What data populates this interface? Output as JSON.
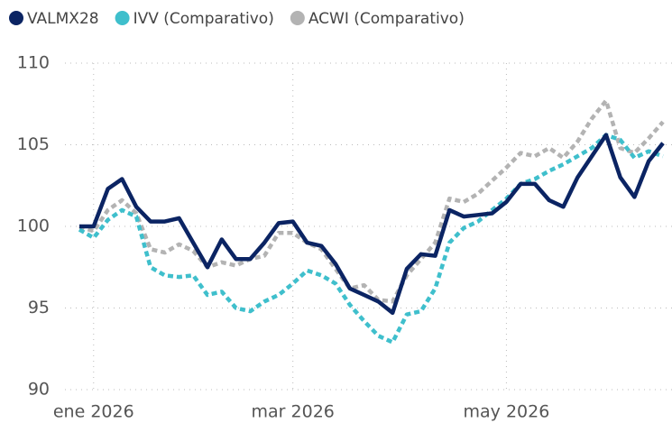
{
  "chart_data": {
    "type": "line",
    "categories": [
      null,
      "ene 2026",
      null,
      null,
      null,
      null,
      null,
      null,
      null,
      null,
      null,
      null,
      null,
      null,
      null,
      "mar 2026",
      null,
      null,
      null,
      null,
      null,
      null,
      null,
      null,
      null,
      null,
      null,
      null,
      null,
      null,
      "may 2026",
      null,
      null,
      null,
      null,
      null,
      null,
      null,
      null,
      null,
      null,
      null
    ],
    "series": [
      {
        "name": "VALMX28",
        "color": "#0b2463",
        "dashed": false,
        "values": [
          100.0,
          100.0,
          102.3,
          102.9,
          101.2,
          100.3,
          100.3,
          100.5,
          99.0,
          97.5,
          99.2,
          98.0,
          98.0,
          99.0,
          100.2,
          100.3,
          99.0,
          98.8,
          97.7,
          96.2,
          95.8,
          95.4,
          94.7,
          97.4,
          98.3,
          98.2,
          101.0,
          100.6,
          100.7,
          100.8,
          101.5,
          102.6,
          102.6,
          101.6,
          101.2,
          103.0,
          104.3,
          105.6,
          103.0,
          101.8,
          104.0,
          105.1
        ]
      },
      {
        "name": "IVV (Comparativo)",
        "color": "#3fbfcc",
        "dashed": true,
        "values": [
          99.8,
          99.3,
          100.4,
          101.0,
          100.6,
          97.5,
          97.0,
          96.9,
          97.0,
          95.8,
          96.0,
          95.0,
          94.8,
          95.4,
          95.8,
          96.5,
          97.3,
          97.0,
          96.5,
          95.2,
          94.2,
          93.3,
          92.9,
          94.6,
          94.8,
          96.2,
          99.0,
          99.9,
          100.3,
          101.0,
          101.7,
          102.6,
          102.9,
          103.4,
          103.8,
          104.3,
          104.8,
          105.6,
          105.3,
          104.2,
          104.6,
          104.3
        ]
      },
      {
        "name": "ACWI (Comparativo)",
        "color": "#b3b3b3",
        "dashed": true,
        "values": [
          100.0,
          99.7,
          101.0,
          101.6,
          100.8,
          98.6,
          98.4,
          98.9,
          98.5,
          97.5,
          97.8,
          97.6,
          98.0,
          98.2,
          99.6,
          99.6,
          99.0,
          98.6,
          97.4,
          96.2,
          96.4,
          95.5,
          95.4,
          97.0,
          98.0,
          99.0,
          101.7,
          101.5,
          102.0,
          102.8,
          103.6,
          104.5,
          104.3,
          104.8,
          104.2,
          105.2,
          106.6,
          107.7,
          104.8,
          104.5,
          105.4,
          106.4
        ]
      }
    ],
    "ylim": [
      90,
      110
    ],
    "yticks": [
      90,
      95,
      100,
      105,
      110
    ],
    "grid": true,
    "legend": "top"
  }
}
